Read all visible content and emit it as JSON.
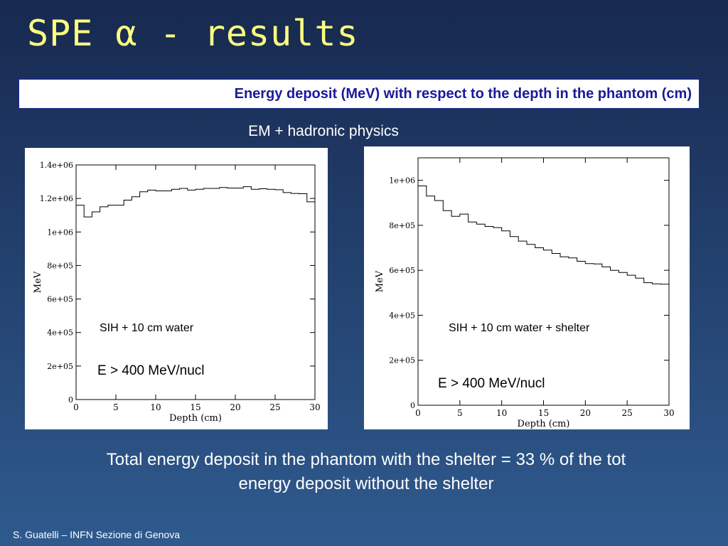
{
  "slide": {
    "title": "SPE α - results",
    "subtitle": "Energy deposit  (MeV) with respect to the depth in the phantom (cm)",
    "physics_label": "EM + hadronic physics",
    "conclusion_line1": "Total energy deposit in the phantom with the shelter = 33 % of the tot",
    "conclusion_line2": "energy deposit without the shelter",
    "footer": "S. Guatelli – INFN Sezione di Genova"
  },
  "chart_data": [
    {
      "type": "line",
      "step": true,
      "xlabel": "Depth (cm)",
      "ylabel": "MeV",
      "xlim": [
        0,
        30
      ],
      "ylim": [
        0,
        1400000
      ],
      "x_ticks": [
        0,
        5,
        10,
        15,
        20,
        25,
        30
      ],
      "x_tick_labels": [
        "0",
        "5",
        "10",
        "15",
        "20",
        "25",
        "30"
      ],
      "y_ticks": [
        0,
        200000,
        400000,
        600000,
        800000,
        1000000,
        1200000,
        1400000
      ],
      "y_tick_labels": [
        "0",
        "2e+05",
        "4e+05",
        "6e+05",
        "8e+05",
        "1e+06",
        "1.2e+06",
        "1.4e+06"
      ],
      "annotation1": "SIH + 10 cm water",
      "annotation2": "E > 400 MeV/nucl",
      "bin_width": 1,
      "values": [
        1160000,
        1090000,
        1120000,
        1150000,
        1160000,
        1160000,
        1190000,
        1210000,
        1240000,
        1250000,
        1245000,
        1245000,
        1255000,
        1260000,
        1250000,
        1255000,
        1260000,
        1260000,
        1265000,
        1262000,
        1262000,
        1270000,
        1255000,
        1258000,
        1255000,
        1252000,
        1235000,
        1230000,
        1228000,
        1180000
      ]
    },
    {
      "type": "line",
      "step": true,
      "xlabel": "Depth (cm)",
      "ylabel": "MeV",
      "xlim": [
        0,
        30
      ],
      "ylim": [
        0,
        1100000
      ],
      "x_ticks": [
        0,
        5,
        10,
        15,
        20,
        25,
        30
      ],
      "x_tick_labels": [
        "0",
        "5",
        "10",
        "15",
        "20",
        "25",
        "30"
      ],
      "y_ticks": [
        0,
        200000,
        400000,
        600000,
        800000,
        1000000
      ],
      "y_tick_labels": [
        "0",
        "2e+05",
        "4e+05",
        "6e+05",
        "8e+05",
        "1e+06"
      ],
      "annotation1": "SIH + 10 cm water + shelter",
      "annotation2": "E > 400 MeV/nucl",
      "bin_width": 1,
      "values": [
        975000,
        930000,
        910000,
        865000,
        840000,
        850000,
        815000,
        805000,
        795000,
        790000,
        775000,
        750000,
        730000,
        715000,
        700000,
        690000,
        675000,
        660000,
        655000,
        640000,
        630000,
        628000,
        615000,
        600000,
        590000,
        578000,
        565000,
        545000,
        540000,
        538000
      ]
    }
  ]
}
